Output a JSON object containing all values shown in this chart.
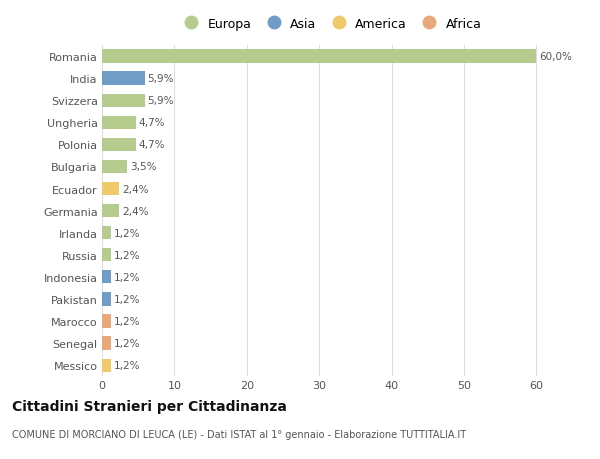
{
  "countries": [
    "Romania",
    "India",
    "Svizzera",
    "Ungheria",
    "Polonia",
    "Bulgaria",
    "Ecuador",
    "Germania",
    "Irlanda",
    "Russia",
    "Indonesia",
    "Pakistan",
    "Marocco",
    "Senegal",
    "Messico"
  ],
  "values": [
    60.0,
    5.9,
    5.9,
    4.7,
    4.7,
    3.5,
    2.4,
    2.4,
    1.2,
    1.2,
    1.2,
    1.2,
    1.2,
    1.2,
    1.2
  ],
  "labels": [
    "60,0%",
    "5,9%",
    "5,9%",
    "4,7%",
    "4,7%",
    "3,5%",
    "2,4%",
    "2,4%",
    "1,2%",
    "1,2%",
    "1,2%",
    "1,2%",
    "1,2%",
    "1,2%",
    "1,2%"
  ],
  "continents": [
    "Europa",
    "Asia",
    "Europa",
    "Europa",
    "Europa",
    "Europa",
    "America",
    "Europa",
    "Europa",
    "Europa",
    "Asia",
    "Asia",
    "Africa",
    "Africa",
    "America"
  ],
  "continent_colors": {
    "Europa": "#b5cc8e",
    "Asia": "#6f9dc6",
    "America": "#f0c96b",
    "Africa": "#e8a87c"
  },
  "legend_order": [
    "Europa",
    "Asia",
    "America",
    "Africa"
  ],
  "legend_colors": [
    "#b5cc8e",
    "#6f9dc6",
    "#f0c96b",
    "#e8a87c"
  ],
  "title": "Cittadini Stranieri per Cittadinanza",
  "subtitle": "COMUNE DI MORCIANO DI LEUCA (LE) - Dati ISTAT al 1° gennaio - Elaborazione TUTTITALIA.IT",
  "xlim_max": 63,
  "xticks": [
    0,
    10,
    20,
    30,
    40,
    50,
    60
  ],
  "background_color": "#ffffff",
  "grid_color": "#dddddd",
  "bar_height": 0.6
}
